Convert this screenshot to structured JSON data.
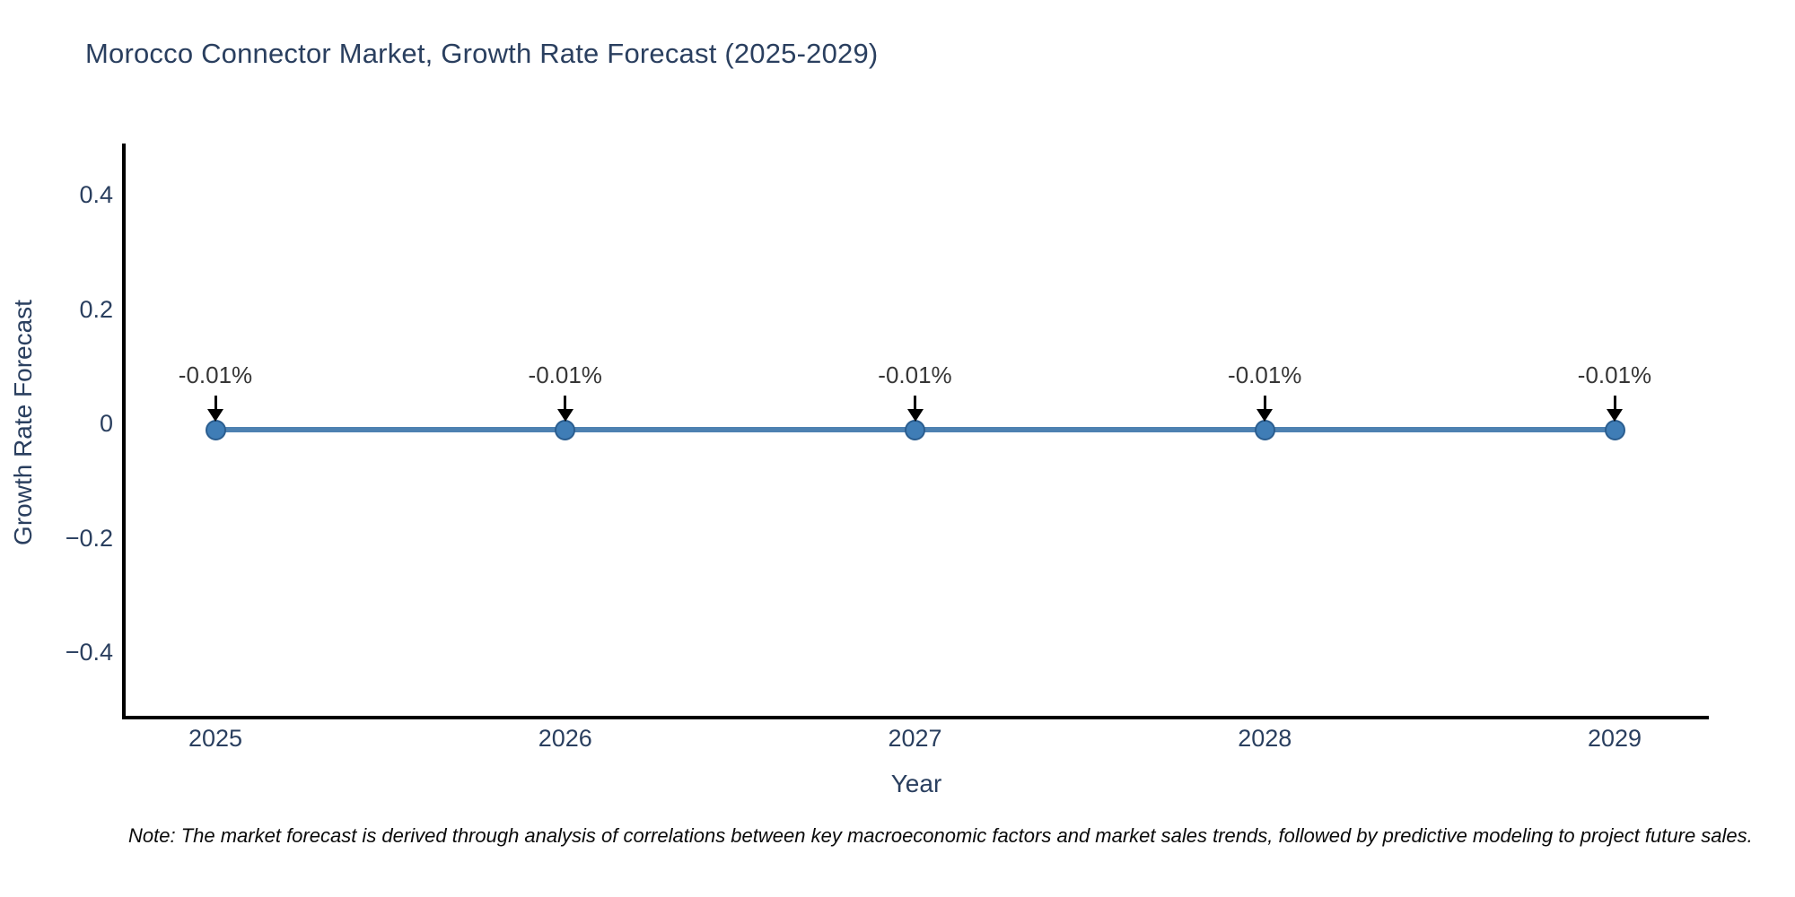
{
  "title": "Morocco Connector Market, Growth Rate Forecast (2025-2029)",
  "note": "Note: The market forecast is derived through analysis of correlations between key macroeconomic factors and market sales trends, followed by predictive modeling to project future sales.",
  "colors": {
    "title_text": "#2a3f5f",
    "axis_text": "#2a3f5f",
    "axis_line": "#000000",
    "line": "#4d81b1",
    "marker_fill": "#3f7db6",
    "marker_edge": "#2a5d8f",
    "annotation_text": "#363636",
    "arrow": "#000000"
  },
  "chart_data": {
    "type": "line",
    "title": "Morocco Connector Market, Growth Rate Forecast (2025-2029)",
    "xlabel": "Year",
    "ylabel": "Growth Rate Forecast",
    "x": [
      2025,
      2026,
      2027,
      2028,
      2029
    ],
    "xtick_labels": [
      "2025",
      "2026",
      "2027",
      "2028",
      "2029"
    ],
    "series": [
      {
        "name": "Growth Rate Forecast",
        "values": [
          -0.01,
          -0.01,
          -0.01,
          -0.01,
          -0.01
        ]
      }
    ],
    "point_labels": [
      "-0.01%",
      "-0.01%",
      "-0.01%",
      "-0.01%",
      "-0.01%"
    ],
    "ylim": [
      -0.5,
      0.5
    ],
    "yticks": [
      0.4,
      0.2,
      0,
      -0.2,
      -0.4
    ],
    "ytick_labels": [
      "0.4",
      "0.2",
      "0",
      "−0.2",
      "−0.4"
    ],
    "grid": false,
    "legend": false
  }
}
